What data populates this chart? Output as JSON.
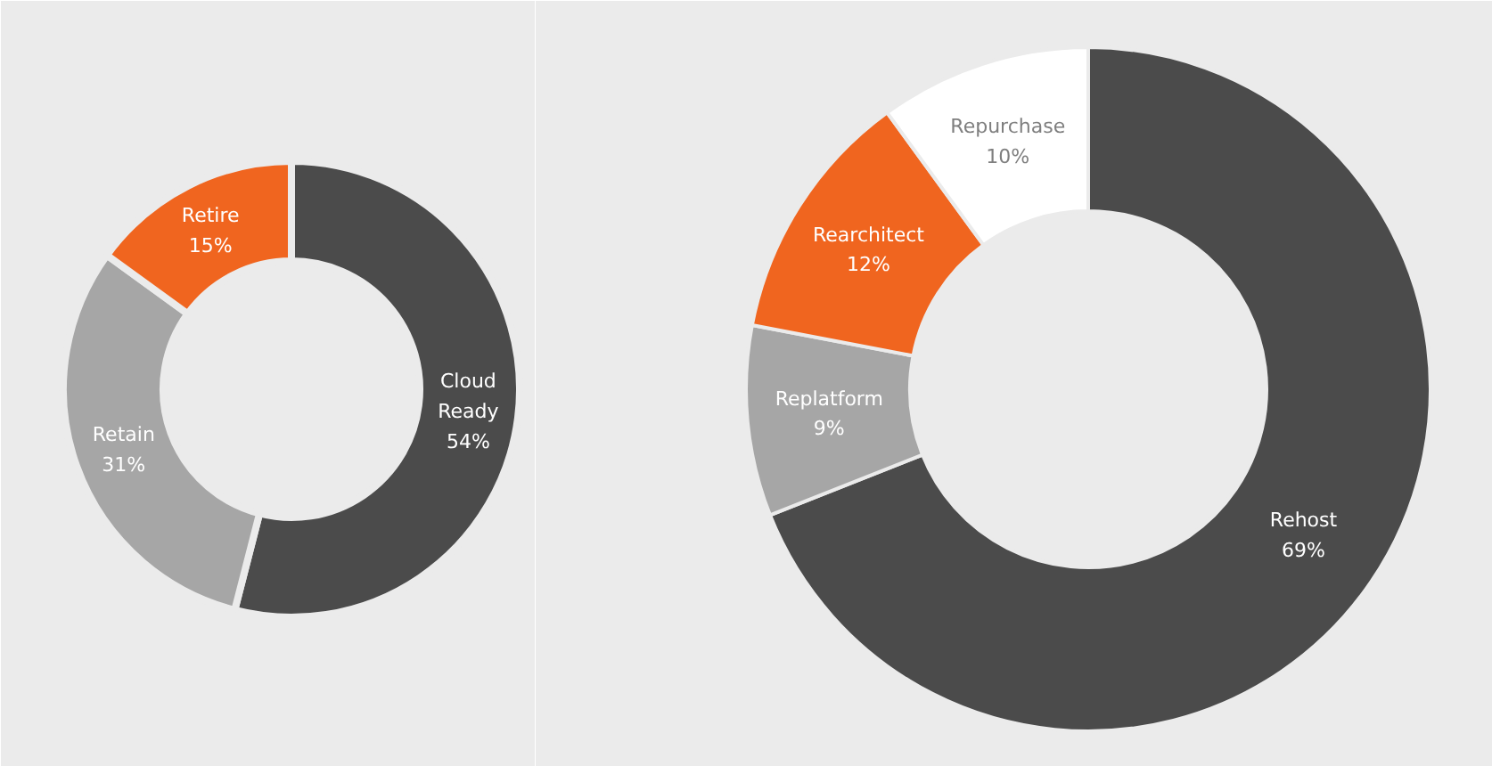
{
  "chart_data": [
    {
      "type": "donut",
      "categories": [
        "Cloud Ready",
        "Retain",
        "Retire"
      ],
      "values": [
        54,
        31,
        15
      ],
      "colors": [
        "#4b4b4b",
        "#a6a6a6",
        "#f0651f"
      ],
      "value_labels": [
        "54%",
        "31%",
        "15%"
      ]
    },
    {
      "type": "donut",
      "categories": [
        "Rehost",
        "Replatform",
        "Rearchitect",
        "Repurchase"
      ],
      "values": [
        69,
        9,
        12,
        10
      ],
      "colors": [
        "#4b4b4b",
        "#a6a6a6",
        "#f0651f",
        "#ffffff"
      ],
      "value_labels": [
        "69%",
        "9%",
        "12%",
        "10%"
      ]
    }
  ]
}
